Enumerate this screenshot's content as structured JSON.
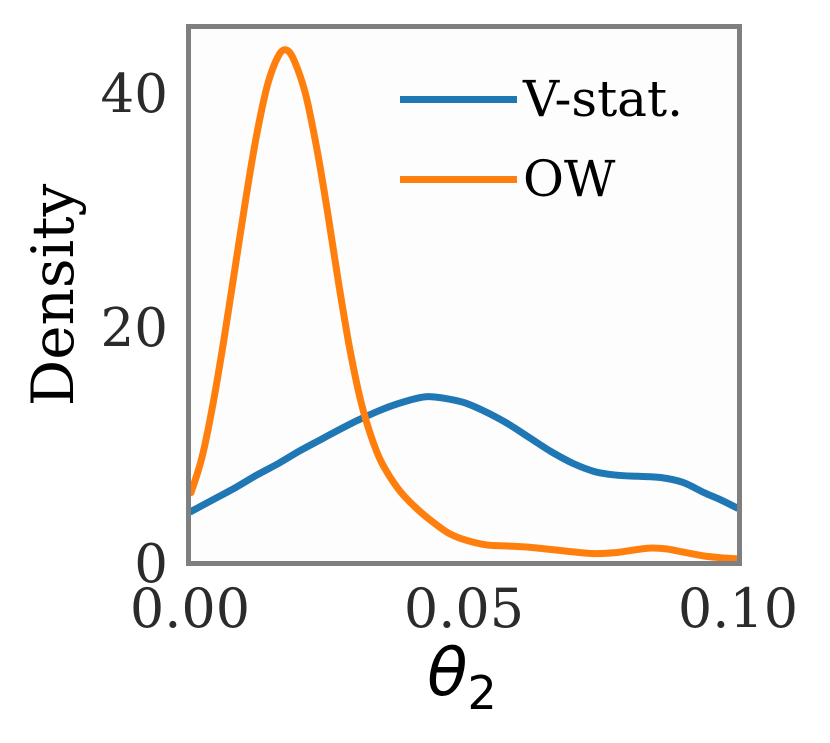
{
  "figure": {
    "ylabel": "Density",
    "xlabel_symbol": "θ",
    "xlabel_subscript": "2",
    "frame_color": "#7f7f7f",
    "plot_background": "#fdfdfd",
    "tick_color": "#2b2b2b"
  },
  "chart_data": {
    "type": "line",
    "title": "",
    "xlabel": "theta_2",
    "ylabel": "Density",
    "xlim": [
      0.0,
      0.1
    ],
    "ylim": [
      0,
      45.6
    ],
    "grid": false,
    "legend_position": "upper right",
    "xtick_values": [
      0.0,
      0.05,
      0.1
    ],
    "xtick_labels": [
      "0.00",
      "0.05",
      "0.10"
    ],
    "ytick_values": [
      0,
      20,
      40
    ],
    "ytick_labels": [
      "0",
      "20",
      "40"
    ],
    "series": [
      {
        "name": "V-stat.",
        "color": "#1f77b4",
        "x": [
          0.0,
          0.004,
          0.008,
          0.012,
          0.016,
          0.02,
          0.024,
          0.028,
          0.032,
          0.036,
          0.04,
          0.043,
          0.046,
          0.05,
          0.054,
          0.058,
          0.062,
          0.066,
          0.07,
          0.074,
          0.078,
          0.082,
          0.086,
          0.09,
          0.094,
          0.097,
          0.1
        ],
        "y": [
          4.4,
          5.4,
          6.4,
          7.5,
          8.5,
          9.6,
          10.6,
          11.6,
          12.5,
          13.3,
          13.9,
          14.2,
          14.1,
          13.7,
          12.9,
          11.9,
          10.7,
          9.5,
          8.5,
          7.8,
          7.5,
          7.4,
          7.3,
          6.9,
          6.0,
          5.4,
          4.7
        ]
      },
      {
        "name": "OW",
        "color": "#ff7f0e",
        "x": [
          0.0,
          0.002,
          0.004,
          0.006,
          0.008,
          0.01,
          0.012,
          0.014,
          0.016,
          0.0175,
          0.019,
          0.021,
          0.023,
          0.025,
          0.027,
          0.029,
          0.031,
          0.033,
          0.035,
          0.038,
          0.041,
          0.044,
          0.047,
          0.05,
          0.054,
          0.058,
          0.062,
          0.066,
          0.07,
          0.074,
          0.078,
          0.081,
          0.084,
          0.087,
          0.09,
          0.094,
          0.097,
          0.1
        ],
        "y": [
          6.0,
          9.0,
          13.5,
          19.0,
          25.0,
          31.0,
          36.5,
          40.8,
          43.3,
          43.8,
          42.8,
          40.0,
          35.5,
          30.0,
          24.0,
          18.5,
          14.0,
          10.8,
          8.5,
          6.3,
          4.8,
          3.6,
          2.6,
          2.0,
          1.55,
          1.45,
          1.35,
          1.15,
          0.95,
          0.8,
          0.9,
          1.1,
          1.27,
          1.2,
          0.95,
          0.6,
          0.45,
          0.35
        ]
      }
    ]
  }
}
